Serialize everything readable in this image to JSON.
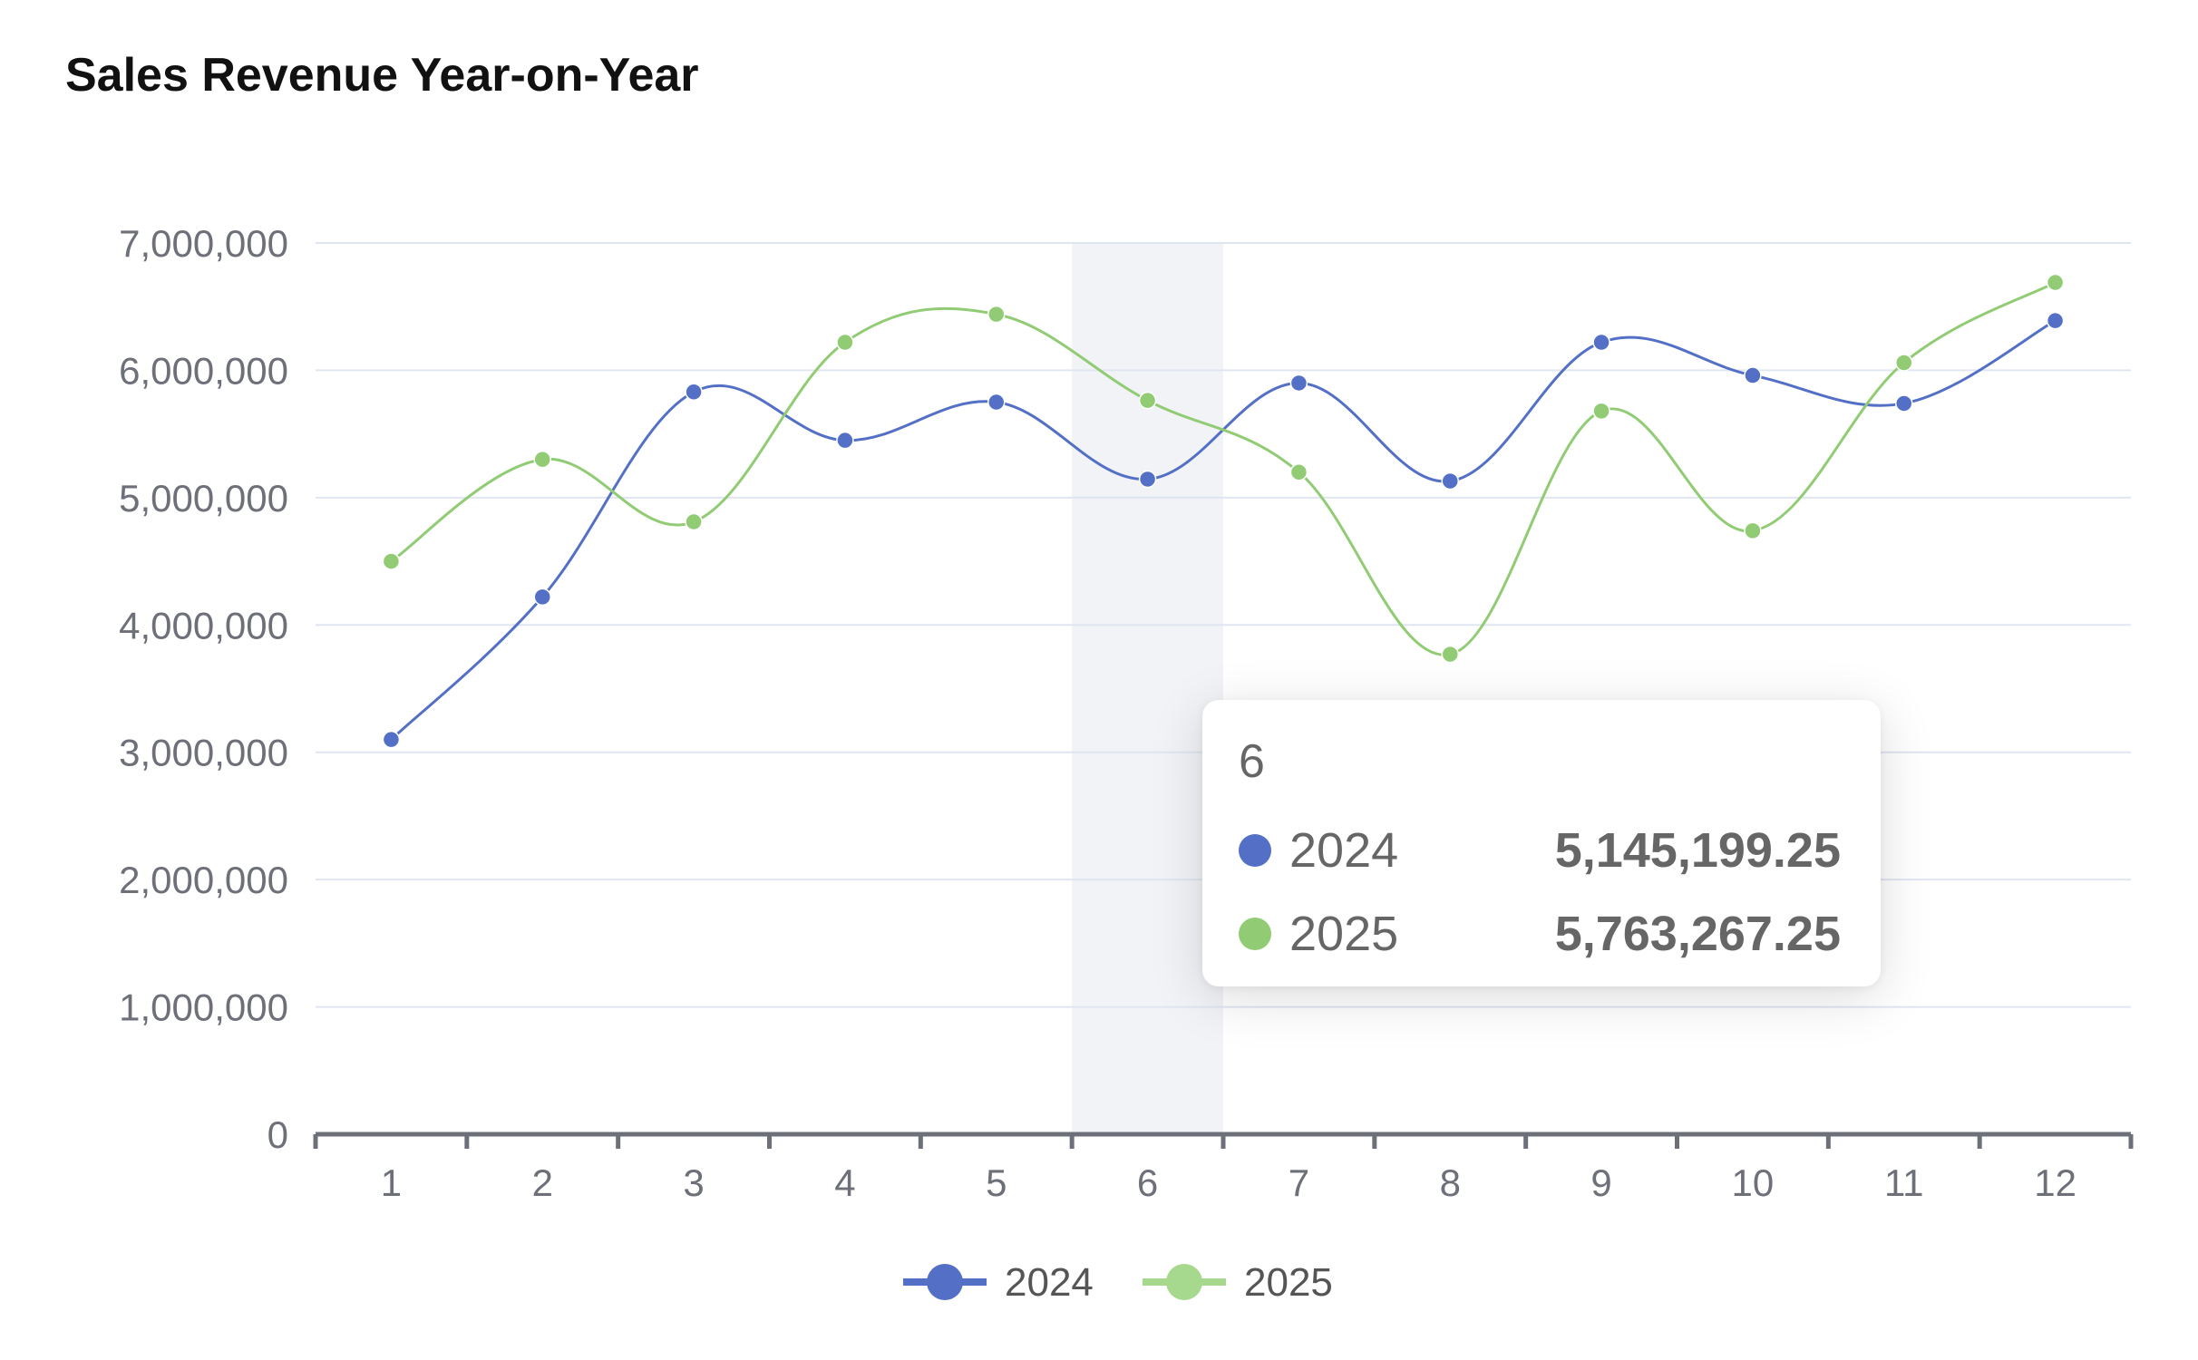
{
  "chart_data": {
    "type": "line",
    "title": "Sales Revenue Year-on-Year",
    "categories": [
      "1",
      "2",
      "3",
      "4",
      "5",
      "6",
      "7",
      "8",
      "9",
      "10",
      "11",
      "12"
    ],
    "ylim": [
      0,
      7000000
    ],
    "yticks": [
      "0",
      "1,000,000",
      "2,000,000",
      "3,000,000",
      "4,000,000",
      "5,000,000",
      "6,000,000",
      "7,000,000"
    ],
    "grid": true,
    "smooth": true,
    "legend_position": "bottom-center",
    "series": [
      {
        "name": "2024",
        "color": "#5470c6",
        "values": [
          3100000,
          4220000,
          5830000,
          5450000,
          5750000,
          5145199.25,
          5900000,
          5130000,
          6220000,
          5960000,
          5740000,
          6390000
        ]
      },
      {
        "name": "2025",
        "color": "#91cc75",
        "values": [
          4500000,
          5300000,
          4810000,
          6220000,
          6440000,
          5763267.25,
          5200000,
          3770000,
          5680000,
          4740000,
          6060000,
          6690000
        ]
      }
    ],
    "highlight_category": "6",
    "tooltip": {
      "title": "6",
      "rows": [
        {
          "name": "2024",
          "value": "5,145,199.25",
          "color": "#5470c6"
        },
        {
          "name": "2025",
          "value": "5,763,267.25",
          "color": "#91cc75"
        }
      ]
    }
  }
}
